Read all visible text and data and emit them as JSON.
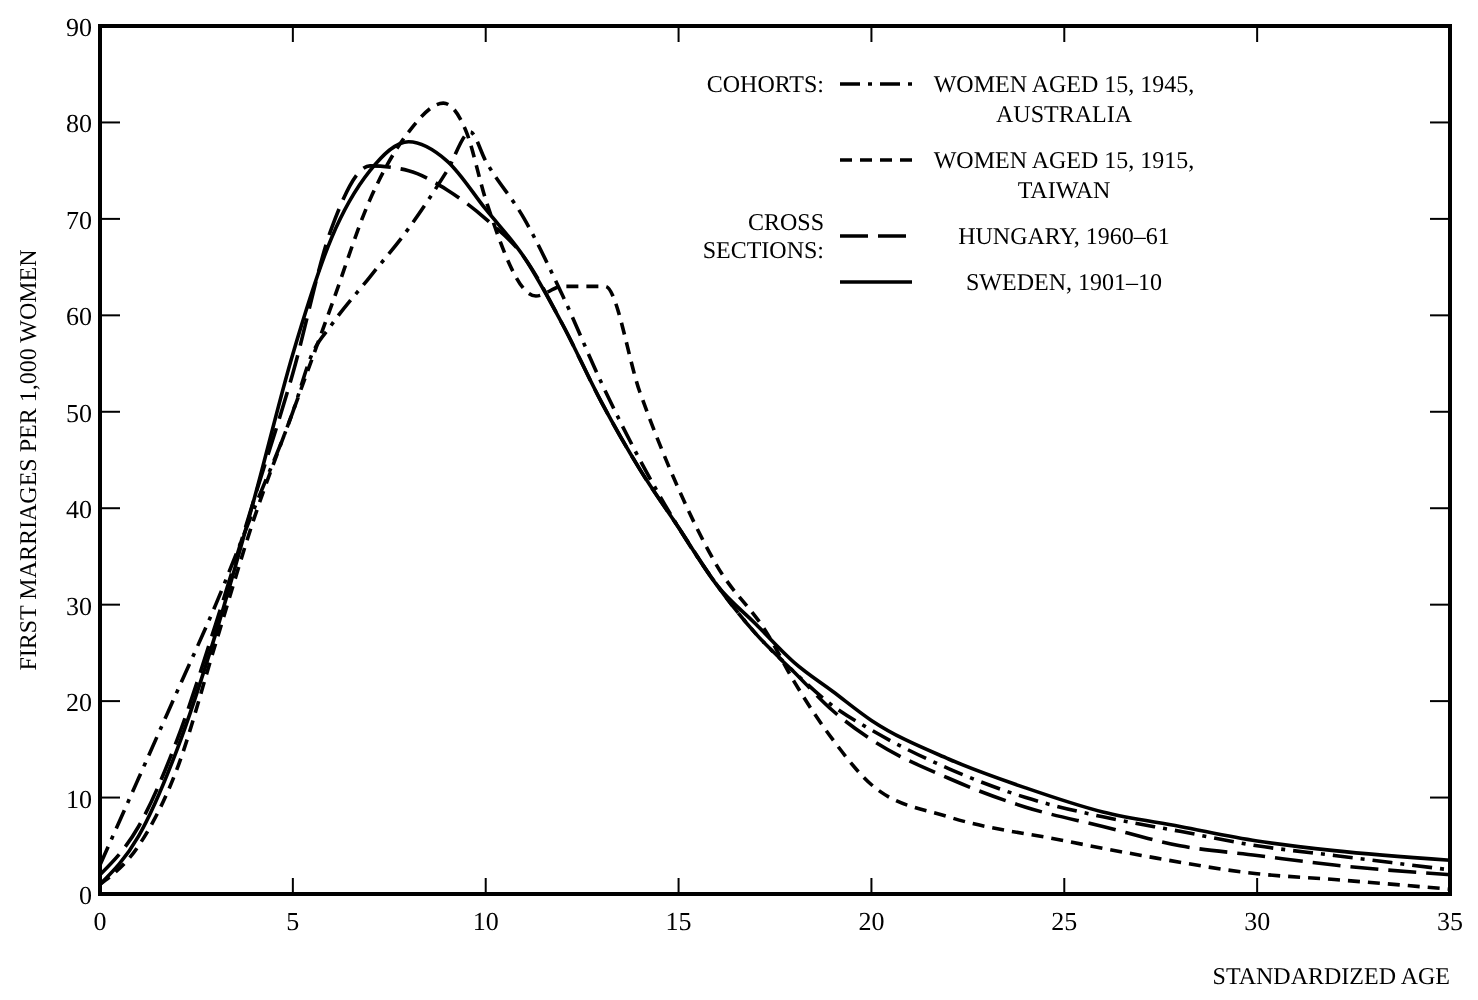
{
  "chart_data": {
    "type": "line",
    "xlabel": "STANDARDIZED AGE",
    "ylabel": "FIRST MARRIAGES PER 1,000 WOMEN",
    "xlim": [
      0,
      35
    ],
    "ylim": [
      0,
      90
    ],
    "xticks": [
      0,
      5,
      10,
      15,
      20,
      25,
      30,
      35
    ],
    "yticks": [
      0,
      10,
      20,
      30,
      40,
      50,
      60,
      70,
      80,
      90
    ],
    "grid": false,
    "legend": "top right",
    "annotations": [
      "COHORTS:",
      "CROSS SECTIONS:"
    ],
    "series": [
      {
        "name": "WOMEN AGED 15, 1945, AUSTRALIA",
        "color": "#000000",
        "line_style": "dashdot",
        "x": [
          0,
          1,
          2,
          3,
          4,
          5,
          5.5,
          6,
          7,
          8,
          9,
          9.6,
          10,
          11,
          12,
          13,
          14,
          15,
          16,
          17,
          18,
          19,
          20,
          22,
          24,
          26,
          28,
          30,
          32,
          35
        ],
        "values": [
          3,
          12,
          21,
          30,
          40,
          50,
          56,
          59,
          64,
          69,
          75,
          79,
          76,
          70,
          62,
          53,
          45,
          38,
          32,
          27,
          23,
          19.5,
          17,
          13,
          10,
          8,
          6.5,
          5,
          4,
          2.5
        ]
      },
      {
        "name": "WOMEN AGED 15, 1915, TAIWAN",
        "color": "#000000",
        "line_style": "dashed",
        "x": [
          0,
          1,
          2,
          3,
          4,
          5,
          6,
          7,
          8,
          8.9,
          9.5,
          10,
          11.3,
          12,
          13.1,
          14,
          15,
          16,
          17.3,
          18,
          19,
          20.1,
          22,
          24.9,
          27,
          30,
          32,
          35
        ],
        "values": [
          1,
          5,
          13,
          26,
          39,
          50,
          61,
          72,
          79,
          82,
          79,
          72,
          62,
          63,
          63,
          52,
          42,
          34,
          27,
          22,
          16,
          11,
          8,
          5.6,
          4,
          2.1,
          1.5,
          0.5
        ]
      },
      {
        "name": "HUNGARY, 1960–61",
        "color": "#000000",
        "line_style": "longdash",
        "x": [
          0,
          1,
          2,
          3,
          4,
          5,
          6,
          7,
          8,
          9,
          10,
          11,
          12,
          13,
          14,
          15,
          16,
          17,
          18,
          19,
          20,
          22,
          24,
          26,
          28,
          30,
          32,
          35
        ],
        "values": [
          2,
          7,
          16,
          28,
          41,
          54,
          69,
          75.5,
          75,
          73,
          70,
          66,
          59,
          51,
          44,
          38,
          32,
          27,
          23,
          19,
          16,
          12,
          9,
          7,
          5,
          4,
          3,
          2
        ]
      },
      {
        "name": "SWEDEN, 1901–10",
        "color": "#000000",
        "line_style": "solid",
        "x": [
          0,
          1,
          2,
          3,
          4,
          5,
          6,
          7,
          8,
          9,
          10,
          11,
          12,
          13,
          14,
          15,
          16,
          17,
          18,
          19,
          20,
          22,
          24,
          26,
          28,
          30,
          32,
          35
        ],
        "values": [
          1,
          6,
          15,
          27,
          41,
          56,
          68,
          75,
          78,
          76,
          71,
          66,
          59,
          51,
          44,
          38,
          32,
          28,
          24,
          21,
          18,
          14,
          11,
          8.5,
          7,
          5.5,
          4.5,
          3.5
        ]
      }
    ]
  }
}
